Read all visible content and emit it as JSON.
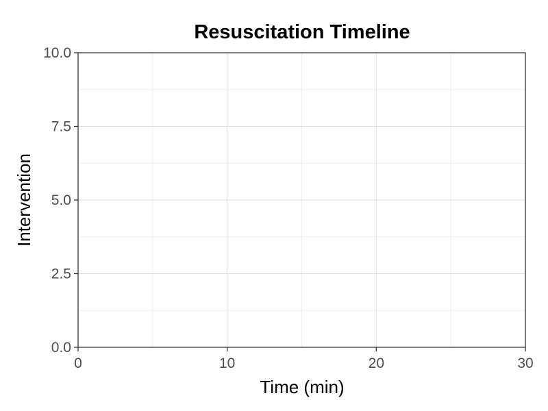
{
  "chart_data": {
    "type": "scatter",
    "title": "Resuscitation Timeline",
    "xlabel": "Time (min)",
    "ylabel": "Intervention",
    "xlim": [
      0,
      30
    ],
    "ylim": [
      0,
      10
    ],
    "x_ticks": [
      0,
      10,
      20,
      30
    ],
    "x_tick_labels": [
      "0",
      "10",
      "20",
      "30"
    ],
    "y_ticks": [
      0,
      2.5,
      5,
      7.5,
      10
    ],
    "y_tick_labels": [
      "0.0",
      "2.5",
      "5.0",
      "7.5",
      "10.0"
    ],
    "x_minor_ticks": [
      5,
      15,
      25
    ],
    "y_minor_ticks": [
      1.25,
      3.75,
      6.25,
      8.75
    ],
    "grid": true,
    "series": [],
    "colors": {
      "grid_major": "#dedede",
      "grid_minor": "#efefef",
      "axis": "#333333",
      "tick_text": "#4d4d4d",
      "text": "#000000",
      "background": "#ffffff"
    }
  }
}
